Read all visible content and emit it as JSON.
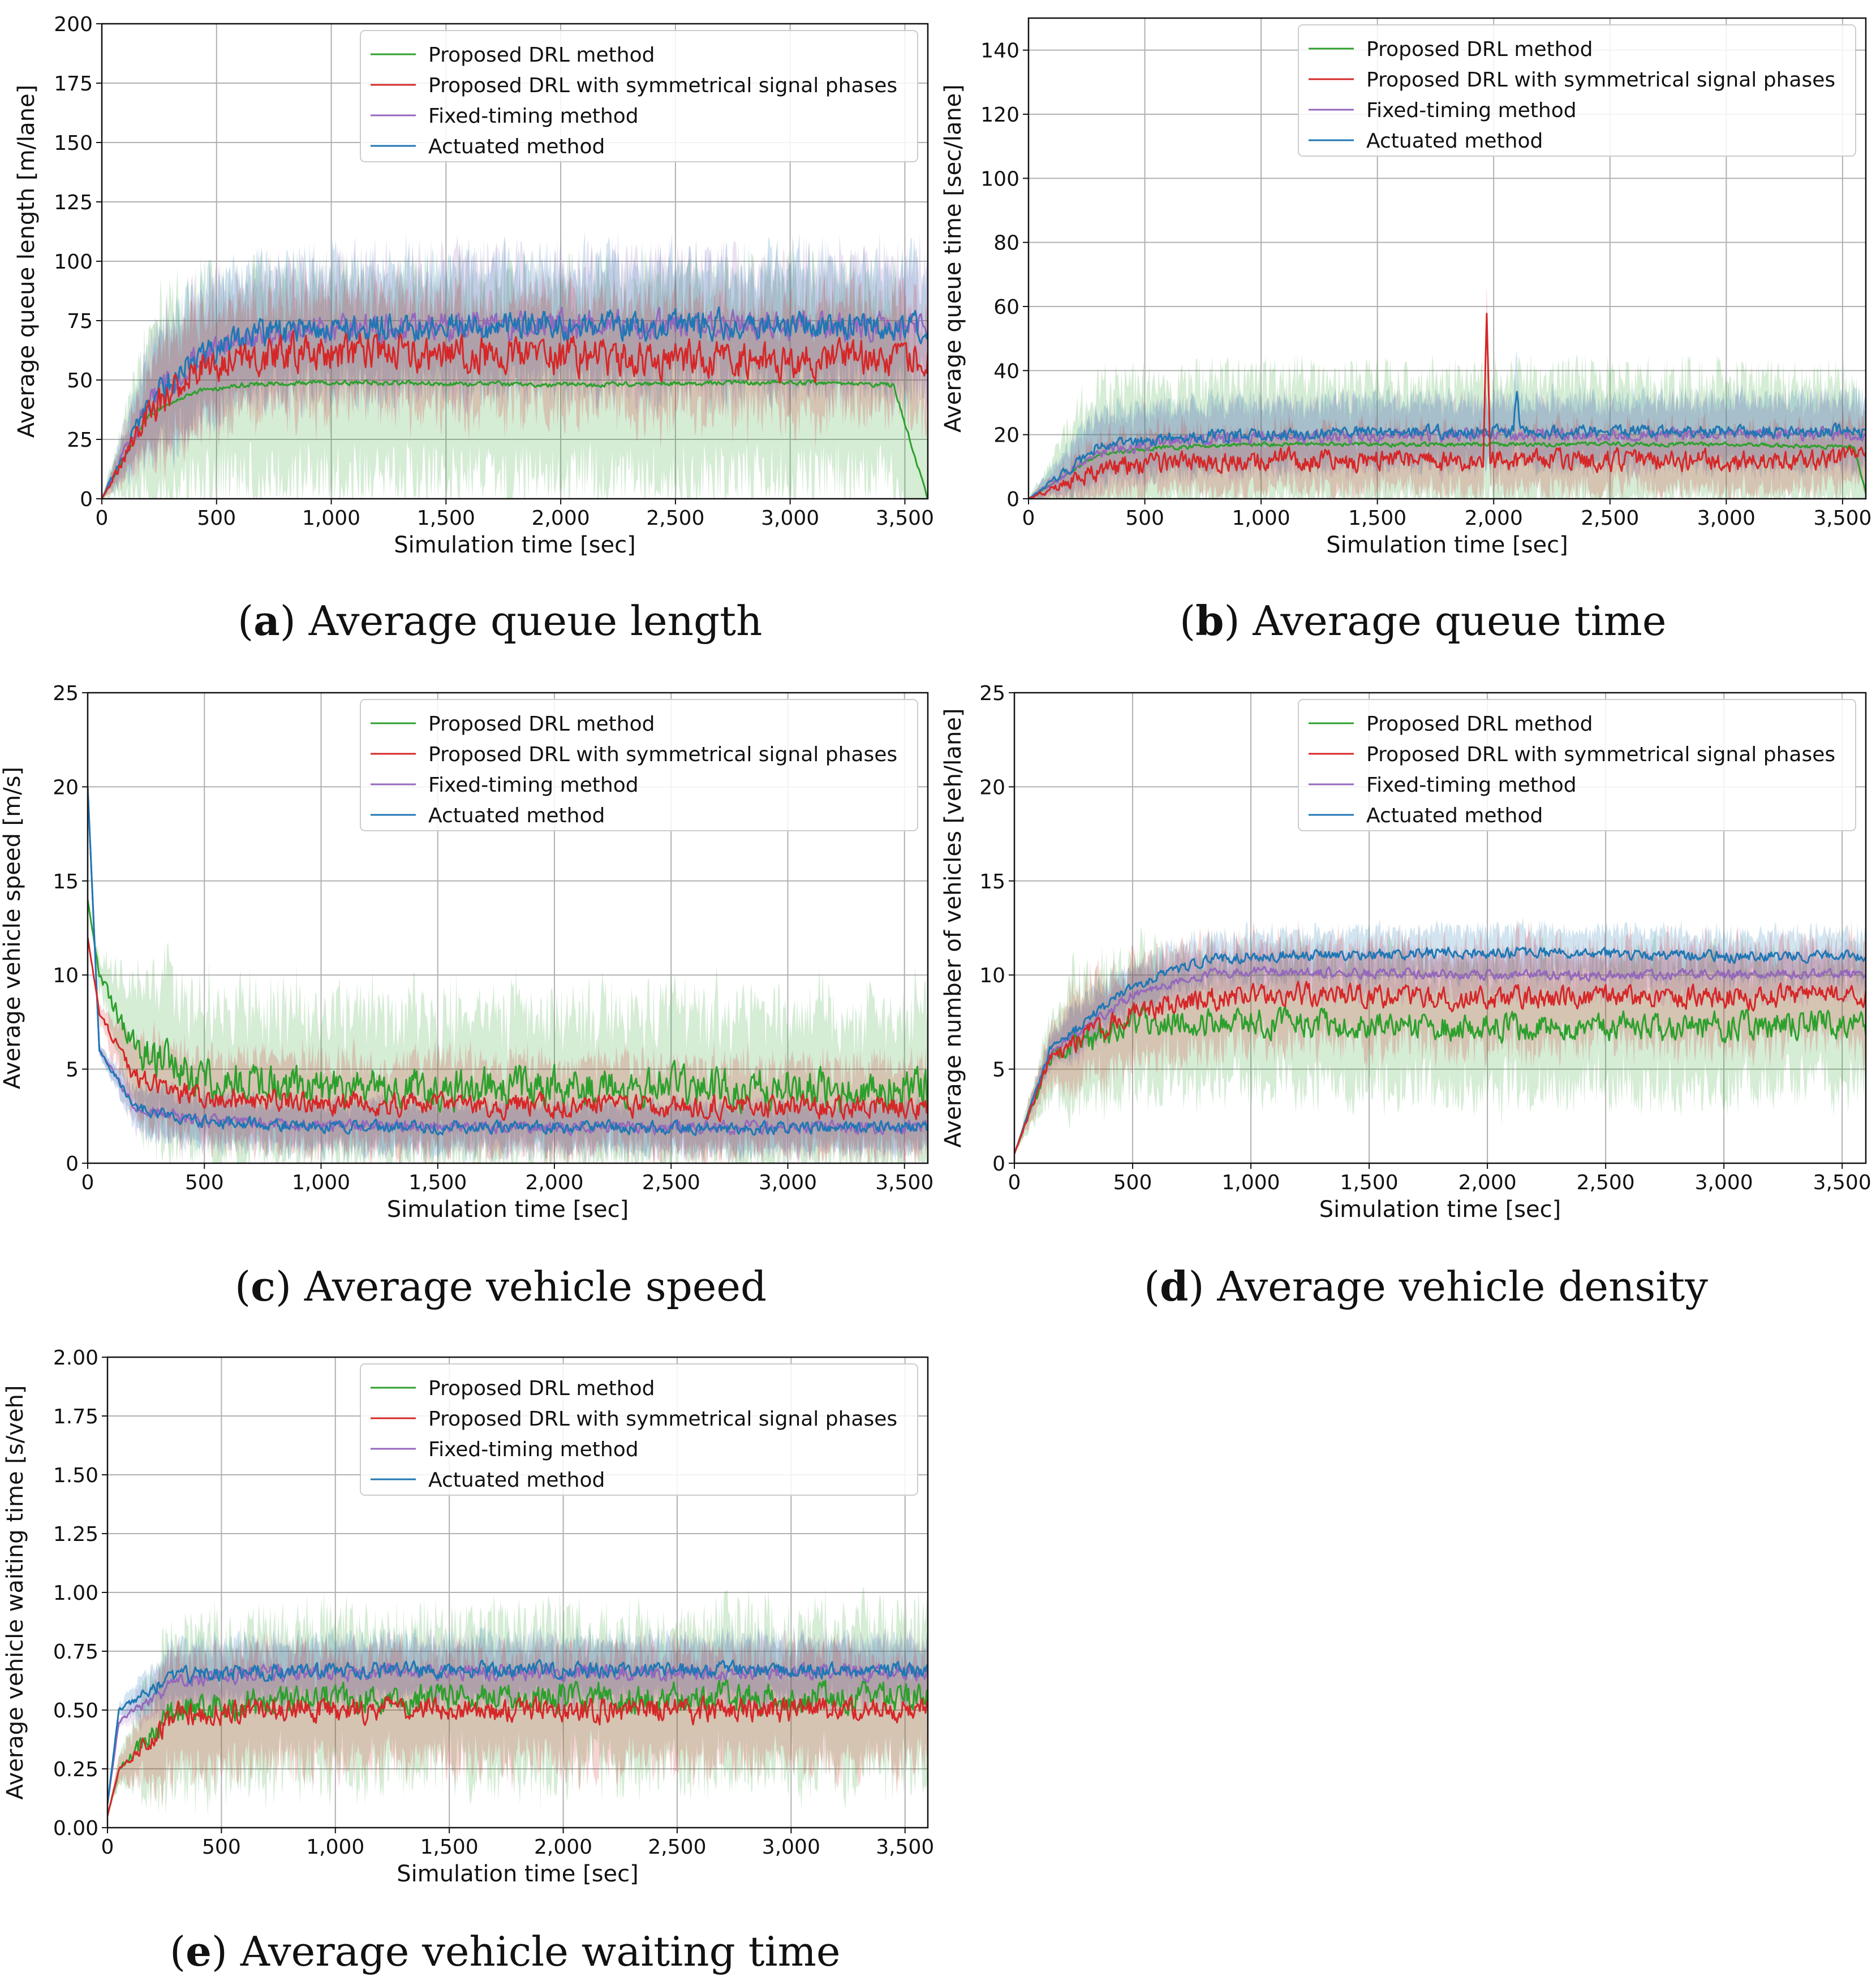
{
  "series_colors": {
    "Proposed DRL method": "#2ca02c",
    "Proposed DRL with symmetrical signal phases": "#d62728",
    "Fixed-timing method": "#9467bd",
    "Actuated method": "#1f77b4"
  },
  "legend_entries": [
    "Proposed DRL method",
    "Proposed DRL with symmetrical signal phases",
    "Fixed-timing method",
    "Actuated method"
  ],
  "chart_data": [
    {
      "id": "a",
      "type": "line",
      "caption_letter": "a",
      "caption_text": "Average queue length",
      "xlabel": "Simulation time [sec]",
      "ylabel": "Average queue length [m/lane]",
      "xlim": [
        0,
        3600
      ],
      "ylim": [
        0,
        200
      ],
      "xticks": [
        0,
        500,
        1000,
        1500,
        2000,
        2500,
        3000,
        3500
      ],
      "xtick_labels": [
        "0",
        "500",
        "1,000",
        "1,500",
        "2,000",
        "2,500",
        "3,000",
        "3,500"
      ],
      "yticks": [
        0,
        25,
        50,
        75,
        100,
        125,
        150,
        175,
        200
      ],
      "ytick_labels": [
        "0",
        "25",
        "50",
        "75",
        "100",
        "125",
        "150",
        "175",
        "200"
      ],
      "legend_loc": "top-right",
      "series": [
        {
          "name": "Proposed DRL method",
          "noise": 1.5,
          "band": 40,
          "x": [
            0,
            200,
            400,
            600,
            1000,
            2000,
            3000,
            3450,
            3600
          ],
          "y": [
            0,
            35,
            45,
            48,
            49,
            48,
            49,
            48,
            0
          ]
        },
        {
          "name": "Proposed DRL with symmetrical signal phases",
          "noise": 12,
          "band": 22,
          "x": [
            0,
            200,
            400,
            600,
            1000,
            2000,
            3000,
            3600
          ],
          "y": [
            0,
            35,
            55,
            60,
            62,
            60,
            58,
            60
          ]
        },
        {
          "name": "Fixed-timing method",
          "noise": 9,
          "band": 25,
          "x": [
            0,
            200,
            400,
            600,
            1000,
            2000,
            3000,
            3600
          ],
          "y": [
            0,
            40,
            58,
            68,
            72,
            73,
            73,
            72
          ]
        },
        {
          "name": "Actuated method",
          "noise": 9,
          "band": 25,
          "x": [
            0,
            200,
            400,
            600,
            1000,
            2000,
            3000,
            3600
          ],
          "y": [
            0,
            40,
            58,
            68,
            72,
            73,
            73,
            72
          ]
        }
      ]
    },
    {
      "id": "b",
      "type": "line",
      "caption_letter": "b",
      "caption_text": "Average queue time",
      "xlabel": "Simulation time [sec]",
      "ylabel": "Average queue time [sec/lane]",
      "xlim": [
        0,
        3600
      ],
      "ylim": [
        0,
        150
      ],
      "xticks": [
        0,
        500,
        1000,
        1500,
        2000,
        2500,
        3000,
        3500
      ],
      "xtick_labels": [
        "0",
        "500",
        "1,000",
        "1,500",
        "2,000",
        "2,500",
        "3,000",
        "3,500"
      ],
      "yticks": [
        0,
        20,
        40,
        60,
        80,
        100,
        120,
        140
      ],
      "ytick_labels": [
        "0",
        "20",
        "40",
        "60",
        "80",
        "100",
        "120",
        "140"
      ],
      "legend_loc": "top-right",
      "series": [
        {
          "name": "Proposed DRL method",
          "noise": 1,
          "band": 20,
          "x": [
            0,
            300,
            600,
            1000,
            2000,
            3000,
            3550,
            3600
          ],
          "y": [
            0,
            14,
            16,
            17,
            17,
            17,
            16,
            2
          ]
        },
        {
          "name": "Proposed DRL with symmetrical signal phases",
          "noise": 5,
          "band": 9,
          "x": [
            0,
            300,
            600,
            1000,
            2000,
            3000,
            3600
          ],
          "y": [
            0,
            9,
            11,
            12,
            12,
            12,
            12
          ],
          "spikes": [
            [
              1970,
              56
            ]
          ]
        },
        {
          "name": "Fixed-timing method",
          "noise": 3,
          "band": 10,
          "x": [
            0,
            300,
            600,
            1000,
            2000,
            3000,
            3600
          ],
          "y": [
            0,
            15,
            18,
            19,
            20,
            20,
            20
          ]
        },
        {
          "name": "Actuated method",
          "noise": 3,
          "band": 10,
          "x": [
            0,
            300,
            600,
            1000,
            2000,
            3000,
            3600
          ],
          "y": [
            0,
            16,
            19,
            20,
            21,
            21,
            21
          ],
          "spikes": [
            [
              2100,
              35
            ]
          ]
        }
      ]
    },
    {
      "id": "c",
      "type": "line",
      "caption_letter": "c",
      "caption_text": "Average vehicle speed",
      "xlabel": "Simulation time [sec]",
      "ylabel": "Average vehicle speed [m/s]",
      "xlim": [
        0,
        3600
      ],
      "ylim": [
        0,
        25
      ],
      "xticks": [
        0,
        500,
        1000,
        1500,
        2000,
        2500,
        3000,
        3500
      ],
      "xtick_labels": [
        "0",
        "500",
        "1,000",
        "1,500",
        "2,000",
        "2,500",
        "3,000",
        "3,500"
      ],
      "yticks": [
        0,
        5,
        10,
        15,
        20,
        25
      ],
      "ytick_labels": [
        "0",
        "5",
        "10",
        "15",
        "20",
        "25"
      ],
      "legend_loc": "top-right",
      "series": [
        {
          "name": "Proposed DRL method",
          "noise": 1.6,
          "band": 4,
          "x": [
            0,
            50,
            200,
            500,
            1000,
            2000,
            3000,
            3600
          ],
          "y": [
            14,
            10,
            6,
            4.5,
            4,
            4,
            4,
            4
          ]
        },
        {
          "name": "Proposed DRL with symmetrical signal phases",
          "noise": 0.9,
          "band": 2.2,
          "x": [
            0,
            50,
            200,
            500,
            1000,
            2000,
            3000,
            3600
          ],
          "y": [
            12,
            8,
            4.5,
            3.5,
            3.2,
            3,
            3,
            3
          ]
        },
        {
          "name": "Fixed-timing method",
          "noise": 0.5,
          "band": 1.2,
          "x": [
            0,
            50,
            200,
            500,
            1000,
            2000,
            3000,
            3600
          ],
          "y": [
            20,
            6,
            3,
            2.2,
            2,
            1.9,
            1.9,
            1.9
          ]
        },
        {
          "name": "Actuated method",
          "noise": 0.5,
          "band": 1.2,
          "x": [
            0,
            50,
            200,
            500,
            1000,
            2000,
            3000,
            3600
          ],
          "y": [
            20,
            6,
            3,
            2.2,
            2,
            1.9,
            1.9,
            1.9
          ]
        }
      ]
    },
    {
      "id": "d",
      "type": "line",
      "caption_letter": "d",
      "caption_text": "Average vehicle density",
      "xlabel": "Simulation time [sec]",
      "ylabel": "Average number of vehicles [veh/lane]",
      "xlim": [
        0,
        3600
      ],
      "ylim": [
        0,
        25
      ],
      "xticks": [
        0,
        500,
        1000,
        1500,
        2000,
        2500,
        3000,
        3500
      ],
      "xtick_labels": [
        "0",
        "500",
        "1,000",
        "1,500",
        "2,000",
        "2,500",
        "3,000",
        "3,500"
      ],
      "yticks": [
        0,
        5,
        10,
        15,
        20,
        25
      ],
      "ytick_labels": [
        "0",
        "5",
        "10",
        "15",
        "20",
        "25"
      ],
      "legend_loc": "top-right",
      "series": [
        {
          "name": "Proposed DRL method",
          "noise": 1.1,
          "band": 3.2,
          "x": [
            0,
            150,
            500,
            1000,
            2000,
            3000,
            3600
          ],
          "y": [
            0.5,
            5.5,
            7.5,
            7.5,
            7.2,
            7.3,
            7.5
          ]
        },
        {
          "name": "Proposed DRL with symmetrical signal phases",
          "noise": 0.9,
          "band": 2.5,
          "x": [
            0,
            150,
            500,
            1000,
            2000,
            3000,
            3600
          ],
          "y": [
            0.5,
            5.5,
            8.2,
            9,
            8.8,
            8.8,
            9
          ]
        },
        {
          "name": "Fixed-timing method",
          "noise": 0.4,
          "band": 1.2,
          "x": [
            0,
            150,
            500,
            800,
            1000,
            2000,
            3000,
            3600
          ],
          "y": [
            0.5,
            5.8,
            9,
            10,
            10.2,
            10,
            10,
            10
          ]
        },
        {
          "name": "Actuated method",
          "noise": 0.45,
          "band": 1.2,
          "x": [
            0,
            150,
            500,
            800,
            1000,
            2000,
            3000,
            3600
          ],
          "y": [
            0.5,
            6,
            9.5,
            10.8,
            11,
            11.2,
            11,
            11
          ]
        }
      ]
    },
    {
      "id": "e",
      "type": "line",
      "caption_letter": "e",
      "caption_text": "Average vehicle waiting time",
      "xlabel": "Simulation time [sec]",
      "ylabel": "Average vehicle waiting time [s/veh]",
      "xlim": [
        0,
        3600
      ],
      "ylim": [
        0,
        2.0
      ],
      "xticks": [
        0,
        500,
        1000,
        1500,
        2000,
        2500,
        3000,
        3500
      ],
      "xtick_labels": [
        "0",
        "500",
        "1,000",
        "1,500",
        "2,000",
        "2,500",
        "3,000",
        "3,500"
      ],
      "yticks": [
        0,
        0.25,
        0.5,
        0.75,
        1.0,
        1.25,
        1.5,
        1.75,
        2.0
      ],
      "ytick_labels": [
        "0.00",
        "0.25",
        "0.50",
        "0.75",
        "1.00",
        "1.25",
        "1.50",
        "1.75",
        "2.00"
      ],
      "legend_loc": "top-right",
      "series": [
        {
          "name": "Proposed DRL method",
          "noise": 0.1,
          "band": 0.3,
          "x": [
            0,
            50,
            300,
            600,
            1000,
            2000,
            3000,
            3600
          ],
          "y": [
            0.05,
            0.25,
            0.5,
            0.52,
            0.55,
            0.55,
            0.55,
            0.55
          ]
        },
        {
          "name": "Proposed DRL with symmetrical signal phases",
          "noise": 0.08,
          "band": 0.22,
          "x": [
            0,
            50,
            300,
            600,
            1000,
            2000,
            3000,
            3600
          ],
          "y": [
            0.05,
            0.25,
            0.48,
            0.5,
            0.5,
            0.5,
            0.5,
            0.5
          ]
        },
        {
          "name": "Fixed-timing method",
          "noise": 0.05,
          "band": 0.12,
          "x": [
            0,
            50,
            300,
            600,
            1000,
            2000,
            3000,
            3600
          ],
          "y": [
            0.1,
            0.45,
            0.62,
            0.65,
            0.66,
            0.66,
            0.66,
            0.66
          ]
        },
        {
          "name": "Actuated method",
          "noise": 0.05,
          "band": 0.12,
          "x": [
            0,
            50,
            300,
            600,
            1000,
            2000,
            3000,
            3600
          ],
          "y": [
            0.1,
            0.5,
            0.65,
            0.66,
            0.67,
            0.67,
            0.67,
            0.67
          ]
        }
      ]
    }
  ]
}
